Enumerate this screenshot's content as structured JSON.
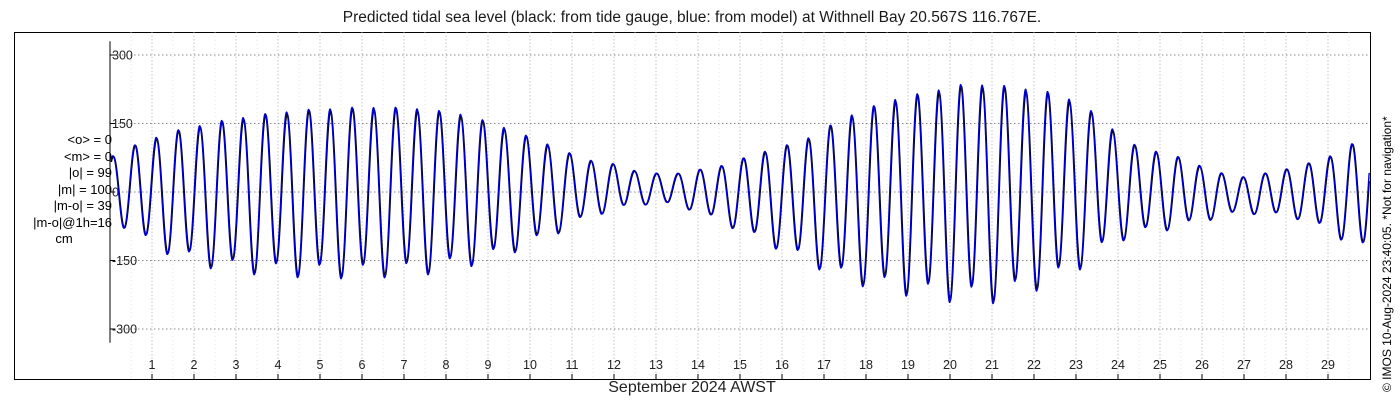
{
  "chart_data": {
    "type": "line",
    "title": "Predicted tidal sea level (black: from tide gauge, blue: from model) at Withnell Bay 20.567S 116.767E.",
    "xlabel": "September 2024 AWST",
    "ylabel": "",
    "x_ticks": [
      1,
      2,
      3,
      4,
      5,
      6,
      7,
      8,
      9,
      10,
      11,
      12,
      13,
      14,
      15,
      16,
      17,
      18,
      19,
      20,
      21,
      22,
      23,
      24,
      25,
      26,
      27,
      28,
      29
    ],
    "xlim": [
      0.0,
      30.0
    ],
    "y_ticks": [
      -300,
      -150,
      0,
      150,
      300
    ],
    "ylim": [
      -330,
      330
    ],
    "grid": true,
    "series": [
      {
        "name": "from tide gauge",
        "color": "#000000"
      },
      {
        "name": "from model",
        "color": "#0000cc"
      }
    ],
    "tidal_envelope": {
      "units": "cm",
      "day": [
        0.0,
        0.7,
        1.5,
        2.5,
        3.5,
        4.5,
        5.5,
        6.5,
        7.5,
        8.5,
        9.5,
        10.5,
        11.3,
        12.0,
        12.7,
        13.5,
        14.5,
        15.5,
        16.5,
        17.5,
        18.5,
        19.5,
        20.3,
        21.0,
        21.5,
        22.3,
        23.0,
        23.5,
        24.0,
        24.5,
        25.3,
        26.0,
        26.8,
        27.5,
        28.3,
        29.0,
        29.5,
        30.0
      ],
      "high": [
        75,
        105,
        130,
        150,
        165,
        175,
        180,
        182,
        178,
        165,
        135,
        100,
        70,
        60,
        40,
        40,
        55,
        85,
        110,
        160,
        195,
        215,
        230,
        230,
        225,
        215,
        195,
        165,
        125,
        95,
        80,
        55,
        30,
        40,
        55,
        75,
        100,
        120
      ],
      "low": [
        -50,
        -95,
        -130,
        -155,
        -165,
        -170,
        -172,
        -170,
        -165,
        -150,
        -125,
        -90,
        -55,
        -35,
        -25,
        -25,
        -60,
        -100,
        -140,
        -180,
        -200,
        -215,
        -222,
        -222,
        -210,
        -190,
        -160,
        -125,
        -100,
        -85,
        -75,
        -60,
        -45,
        -45,
        -55,
        -80,
        -105,
        -125
      ]
    },
    "stats": [
      {
        "label": "<o> = 0"
      },
      {
        "label": "<m> = 0"
      },
      {
        "label": "|o| = 99"
      },
      {
        "label": "|m| = 100"
      },
      {
        "label": "|m-o| = 39"
      },
      {
        "label": "|m-o|@1h=16"
      },
      {
        "label": "cm"
      }
    ],
    "credit": "© IMOS 10-Aug-2024 23:40:05. *Not for navigation*"
  }
}
